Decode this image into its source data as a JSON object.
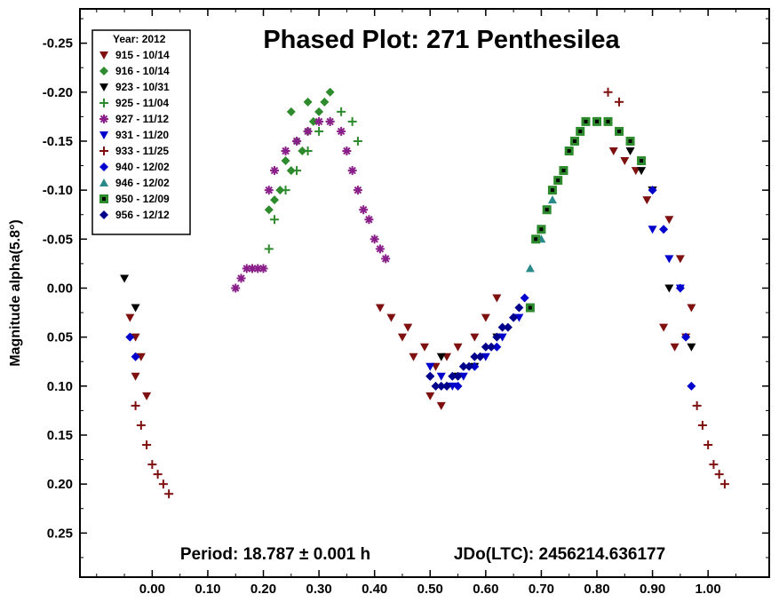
{
  "chart_data": {
    "type": "scatter",
    "title": "Phased Plot: 271 Penthesilea",
    "ylabel": "Magnitude alpha(5.8°)",
    "xlabel": "",
    "xlim": [
      -0.13,
      1.11
    ],
    "ylim": [
      0.295,
      -0.285
    ],
    "y_inverted": true,
    "xticks": [
      0.0,
      0.1,
      0.2,
      0.3,
      0.4,
      0.5,
      0.6,
      0.7,
      0.8,
      0.9,
      1.0
    ],
    "xtick_labels": [
      "0.00",
      "0.10",
      "0.20",
      "0.30",
      "0.40",
      "0.50",
      "0.60",
      "0.70",
      "0.80",
      "0.90",
      "1.00"
    ],
    "yticks": [
      -0.25,
      -0.2,
      -0.15,
      -0.1,
      -0.05,
      0.0,
      0.05,
      0.1,
      0.15,
      0.2,
      0.25
    ],
    "ytick_labels": [
      "-0.25",
      "-0.20",
      "-0.15",
      "-0.10",
      "-0.05",
      "0.00",
      "0.05",
      "0.10",
      "0.15",
      "0.20",
      "0.25"
    ],
    "period_text": "Period: 18.787 ± 0.001 h",
    "epoch_text": "JDo(LTC): 2456214.636177",
    "legend_title": "Year: 2012",
    "legend_position": "top-left",
    "series": [
      {
        "name": "915 - 10/14",
        "marker": "triangle-down",
        "color": "#7f1010",
        "x": [
          -0.04,
          -0.03,
          -0.02,
          -0.03,
          -0.01,
          0.5,
          0.52,
          0.47,
          0.45,
          0.43,
          0.41,
          0.46,
          0.49,
          0.51,
          0.53,
          0.55,
          0.58,
          0.6,
          0.62,
          0.83,
          0.85,
          0.87,
          0.9,
          0.93,
          0.95,
          0.97,
          0.96,
          0.94,
          0.92,
          0.89
        ],
        "y": [
          0.03,
          0.05,
          0.07,
          0.09,
          0.11,
          0.11,
          0.12,
          0.07,
          0.05,
          0.03,
          0.02,
          0.04,
          0.06,
          0.08,
          0.07,
          0.06,
          0.05,
          0.03,
          0.01,
          -0.14,
          -0.13,
          -0.12,
          -0.1,
          -0.07,
          -0.03,
          0.02,
          0.05,
          0.06,
          0.04,
          -0.09
        ]
      },
      {
        "name": "916 - 10/14",
        "marker": "diamond",
        "color": "#2d8a2d",
        "x": [
          0.21,
          0.23,
          0.25,
          0.27,
          0.28,
          0.3,
          0.32,
          0.31,
          0.29,
          0.26,
          0.24,
          0.22,
          0.25,
          0.28
        ],
        "y": [
          -0.08,
          -0.1,
          -0.12,
          -0.14,
          -0.16,
          -0.18,
          -0.2,
          -0.19,
          -0.17,
          -0.15,
          -0.13,
          -0.09,
          -0.18,
          -0.19
        ]
      },
      {
        "name": "923 - 10/31",
        "marker": "triangle-down",
        "color": "#000000",
        "x": [
          -0.05,
          -0.03,
          0.52,
          0.55,
          0.58,
          0.62,
          0.86,
          0.88,
          0.9,
          0.93,
          0.97
        ],
        "y": [
          -0.01,
          0.02,
          0.07,
          0.09,
          0.08,
          0.05,
          -0.14,
          -0.12,
          -0.1,
          0.0,
          0.06
        ]
      },
      {
        "name": "925 - 11/04",
        "marker": "plus",
        "color": "#2d8a2d",
        "x": [
          0.21,
          0.22,
          0.24,
          0.26,
          0.28,
          0.3,
          0.32,
          0.34,
          0.36,
          0.37
        ],
        "y": [
          -0.04,
          -0.07,
          -0.1,
          -0.12,
          -0.14,
          -0.16,
          -0.17,
          -0.18,
          -0.17,
          -0.15
        ]
      },
      {
        "name": "927 - 11/12",
        "marker": "asterisk",
        "color": "#8a1f8a",
        "x": [
          0.15,
          0.16,
          0.17,
          0.18,
          0.19,
          0.2,
          0.21,
          0.22,
          0.24,
          0.26,
          0.28,
          0.3,
          0.32,
          0.34,
          0.35,
          0.36,
          0.37,
          0.38,
          0.39,
          0.4,
          0.41,
          0.42
        ],
        "y": [
          0.0,
          -0.01,
          -0.02,
          -0.02,
          -0.02,
          -0.02,
          -0.1,
          -0.12,
          -0.14,
          -0.15,
          -0.16,
          -0.17,
          -0.17,
          -0.16,
          -0.14,
          -0.12,
          -0.1,
          -0.08,
          -0.07,
          -0.05,
          -0.04,
          -0.03
        ]
      },
      {
        "name": "931 - 11/20",
        "marker": "triangle-down",
        "color": "#0000cc",
        "x": [
          0.5,
          0.52,
          0.54,
          0.56,
          0.6,
          0.63,
          0.66,
          0.9,
          0.93,
          0.95
        ],
        "y": [
          0.08,
          0.09,
          0.1,
          0.09,
          0.07,
          0.05,
          0.03,
          -0.06,
          -0.03,
          0.0
        ]
      },
      {
        "name": "933 - 11/25",
        "marker": "plus",
        "color": "#7f1010",
        "x": [
          -0.03,
          -0.02,
          -0.01,
          0.0,
          0.01,
          0.02,
          0.03,
          0.98,
          0.99,
          1.0,
          1.01,
          1.02,
          1.03,
          0.82,
          0.84
        ],
        "y": [
          0.12,
          0.14,
          0.16,
          0.18,
          0.19,
          0.2,
          0.21,
          0.12,
          0.14,
          0.16,
          0.18,
          0.19,
          0.2,
          -0.2,
          -0.19
        ]
      },
      {
        "name": "940 - 12/02",
        "marker": "diamond",
        "color": "#0000cc",
        "x": [
          -0.04,
          -0.03,
          0.5,
          0.53,
          0.55,
          0.58,
          0.62,
          0.65,
          0.67,
          0.9,
          0.92,
          0.95,
          0.96,
          0.97
        ],
        "y": [
          0.05,
          0.07,
          0.09,
          0.1,
          0.1,
          0.08,
          0.06,
          0.03,
          0.01,
          -0.1,
          -0.06,
          0.0,
          0.05,
          0.1
        ]
      },
      {
        "name": "946 - 12/02",
        "marker": "triangle",
        "color": "#2a8a8a",
        "x": [
          0.68,
          0.7,
          0.72,
          0.74
        ],
        "y": [
          -0.02,
          -0.05,
          -0.09,
          -0.12
        ]
      },
      {
        "name": "950 - 12/09",
        "marker": "square-dot",
        "color": "#2d8a2d",
        "x": [
          0.68,
          0.69,
          0.7,
          0.71,
          0.72,
          0.73,
          0.74,
          0.75,
          0.76,
          0.77,
          0.78,
          0.8,
          0.82,
          0.84,
          0.86,
          0.88
        ],
        "y": [
          0.02,
          -0.05,
          -0.06,
          -0.08,
          -0.1,
          -0.11,
          -0.12,
          -0.14,
          -0.15,
          -0.16,
          -0.17,
          -0.17,
          -0.17,
          -0.16,
          -0.15,
          -0.13
        ]
      },
      {
        "name": "956 - 12/12",
        "marker": "diamond",
        "color": "#00008a",
        "x": [
          0.5,
          0.51,
          0.52,
          0.53,
          0.54,
          0.55,
          0.56,
          0.57,
          0.58,
          0.59,
          0.6,
          0.61,
          0.62,
          0.63,
          0.64,
          0.65,
          0.66
        ],
        "y": [
          0.09,
          0.1,
          0.1,
          0.1,
          0.09,
          0.09,
          0.08,
          0.08,
          0.07,
          0.07,
          0.06,
          0.06,
          0.05,
          0.04,
          0.04,
          0.03,
          0.02
        ]
      }
    ]
  }
}
